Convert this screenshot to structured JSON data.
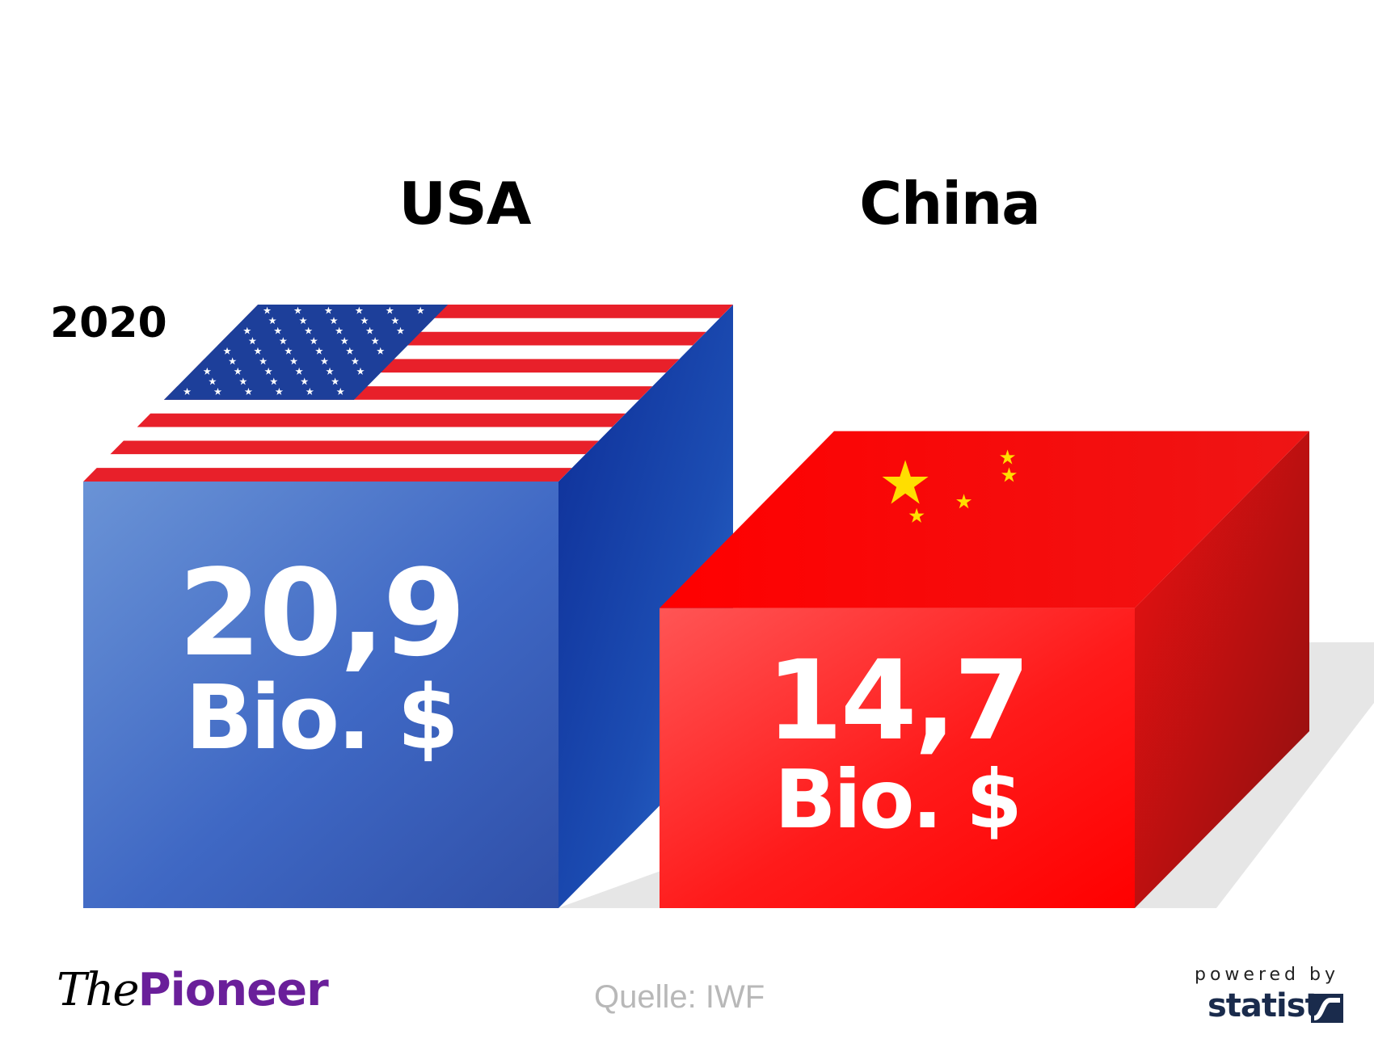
{
  "year_label": "2020",
  "chart_data": {
    "type": "bar",
    "categories": [
      "USA",
      "China"
    ],
    "values": [
      20.9,
      14.7
    ],
    "value_labels": [
      "20,9",
      "14,7"
    ],
    "unit_label": "Bio. $",
    "ylim": [
      0,
      20.9
    ],
    "colors": {
      "USA": "#3d63c2",
      "China": "#ff1a1a"
    }
  },
  "footer": {
    "logo_the": "The",
    "logo_pioneer": "Pioneer",
    "source": "Quelle: IWF",
    "powered_by": "powered by",
    "statista": "statista"
  },
  "icons": [
    "us-flag-icon",
    "china-flag-icon",
    "statista-logo-icon"
  ]
}
